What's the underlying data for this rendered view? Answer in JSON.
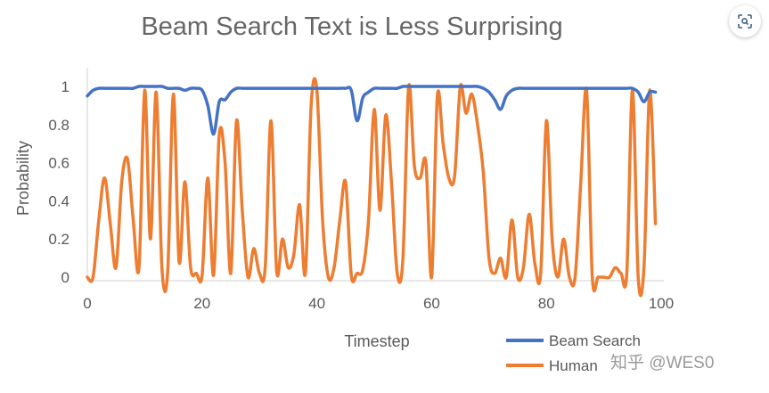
{
  "chart_data": {
    "type": "line",
    "title": "Beam Search Text is Less Surprising",
    "xlabel": "Timestep",
    "ylabel": "Probability",
    "xlim": [
      0,
      100
    ],
    "ylim": [
      0,
      1
    ],
    "x_ticks": [
      "0",
      "20",
      "40",
      "60",
      "80",
      "100"
    ],
    "y_ticks": [
      "0",
      "0.2",
      "0.4",
      "0.6",
      "0.8",
      "1"
    ],
    "grid": false,
    "legend_position": "bottom-right",
    "series": [
      {
        "name": "Beam Search",
        "color": "#4472C4",
        "x": [
          0,
          1,
          2,
          3,
          4,
          5,
          6,
          7,
          8,
          9,
          10,
          11,
          12,
          13,
          14,
          15,
          16,
          17,
          18,
          19,
          20,
          21,
          22,
          23,
          24,
          25,
          26,
          27,
          28,
          29,
          30,
          31,
          32,
          33,
          34,
          35,
          36,
          37,
          38,
          39,
          40,
          41,
          42,
          43,
          44,
          45,
          46,
          47,
          48,
          49,
          50,
          51,
          52,
          53,
          54,
          55,
          56,
          57,
          58,
          59,
          60,
          61,
          62,
          63,
          64,
          65,
          66,
          67,
          68,
          69,
          70,
          71,
          72,
          73,
          74,
          75,
          76,
          77,
          78,
          79,
          80,
          81,
          82,
          83,
          84,
          85,
          86,
          87,
          88,
          89,
          90,
          91,
          92,
          93,
          94,
          95,
          96,
          97,
          98,
          99
        ],
        "values": [
          0.95,
          0.98,
          0.99,
          0.99,
          0.99,
          0.99,
          0.99,
          0.99,
          0.99,
          1.0,
          1.0,
          1.0,
          1.0,
          1.0,
          0.99,
          0.99,
          0.99,
          0.98,
          0.99,
          0.99,
          0.98,
          0.9,
          0.75,
          0.92,
          0.93,
          0.97,
          0.99,
          0.99,
          0.99,
          0.99,
          0.99,
          0.99,
          0.99,
          0.99,
          0.99,
          0.99,
          0.99,
          0.99,
          0.99,
          0.99,
          0.99,
          0.99,
          0.99,
          0.99,
          0.99,
          0.99,
          0.98,
          0.82,
          0.94,
          0.97,
          0.99,
          0.99,
          0.99,
          0.99,
          0.99,
          1.0,
          1.0,
          1.0,
          1.0,
          1.0,
          1.0,
          1.0,
          1.0,
          1.0,
          1.0,
          1.0,
          1.0,
          1.0,
          1.0,
          0.99,
          0.97,
          0.93,
          0.88,
          0.95,
          0.98,
          0.99,
          0.99,
          0.99,
          0.99,
          0.99,
          0.99,
          0.99,
          0.99,
          0.99,
          0.99,
          0.99,
          0.99,
          0.99,
          0.99,
          0.99,
          0.99,
          0.99,
          0.99,
          0.99,
          0.99,
          0.99,
          0.97,
          0.92,
          0.97,
          0.97
        ]
      },
      {
        "name": "Human",
        "color": "#ED7D31",
        "x": [
          0,
          1,
          2,
          3,
          4,
          5,
          6,
          7,
          8,
          9,
          10,
          11,
          12,
          13,
          14,
          15,
          16,
          17,
          18,
          19,
          20,
          21,
          22,
          23,
          24,
          25,
          26,
          27,
          28,
          29,
          30,
          31,
          32,
          33,
          34,
          35,
          36,
          37,
          38,
          39,
          40,
          41,
          42,
          43,
          44,
          45,
          46,
          47,
          48,
          49,
          50,
          51,
          52,
          53,
          54,
          55,
          56,
          57,
          58,
          59,
          60,
          61,
          62,
          63,
          64,
          65,
          66,
          67,
          68,
          69,
          70,
          71,
          72,
          73,
          74,
          75,
          76,
          77,
          78,
          79,
          80,
          81,
          82,
          83,
          84,
          85,
          86,
          87,
          88,
          89,
          90,
          91,
          92,
          93,
          94,
          95,
          96,
          97,
          98,
          99
        ],
        "values": [
          0.0,
          0.0,
          0.3,
          0.52,
          0.28,
          0.05,
          0.5,
          0.62,
          0.3,
          0.05,
          0.98,
          0.2,
          0.97,
          0.05,
          0.03,
          0.96,
          0.08,
          0.5,
          0.05,
          0.02,
          0.01,
          0.52,
          0.01,
          0.75,
          0.6,
          0.02,
          0.82,
          0.35,
          0.0,
          0.15,
          0.02,
          0.05,
          0.82,
          0.03,
          0.2,
          0.05,
          0.12,
          0.38,
          0.02,
          0.9,
          0.98,
          0.3,
          0.0,
          0.05,
          0.3,
          0.5,
          0.01,
          0.02,
          0.04,
          0.3,
          0.88,
          0.35,
          0.85,
          0.5,
          0.02,
          0.1,
          1.0,
          0.58,
          0.52,
          0.6,
          0.0,
          0.95,
          0.7,
          0.52,
          0.53,
          1.0,
          0.86,
          0.96,
          0.8,
          0.55,
          0.1,
          0.02,
          0.1,
          0.0,
          0.3,
          0.0,
          0.05,
          0.33,
          0.07,
          0.02,
          0.82,
          0.2,
          0.0,
          0.2,
          0.0,
          0.0,
          0.5,
          0.98,
          0.0,
          0.0,
          0.0,
          0.0,
          0.05,
          0.02,
          0.02,
          0.98,
          0.0,
          0.05,
          0.98,
          0.28
        ]
      }
    ]
  },
  "watermark": "知乎 @WES0",
  "icons": {
    "lens": "lens-icon"
  }
}
